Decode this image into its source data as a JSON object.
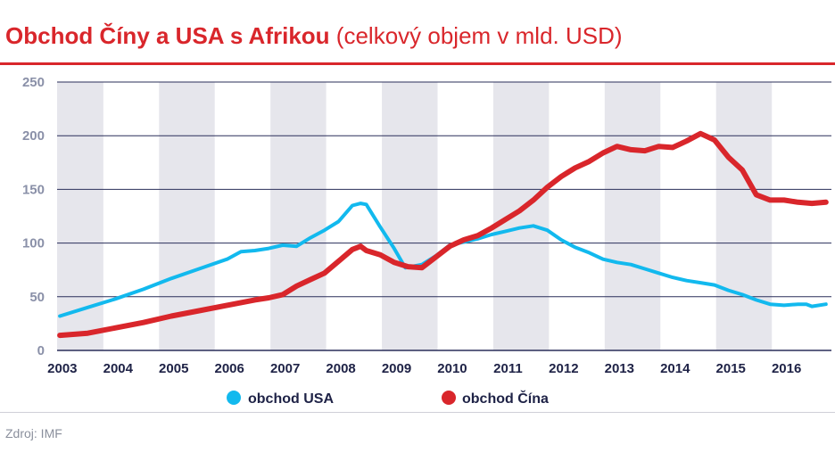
{
  "header": {
    "title_strong": "Obchod Číny a USA s Afrikou",
    "title_light": "(celkový objem v mld. USD)"
  },
  "footer": {
    "source": "Zdroj: IMF"
  },
  "colors": {
    "usa": "#12b9ee",
    "china": "#d9262b",
    "accent": "#d9262b",
    "band": "#e6e6ec",
    "grid": "#2a2f5a"
  },
  "chart_data": {
    "type": "line",
    "title": "Obchod Číny a USA s Afrikou (celkový objem v mld. USD)",
    "xlabel": "",
    "ylabel": "",
    "ylim": [
      0,
      250
    ],
    "xlim": [
      2003,
      2016.75
    ],
    "yticks": [
      0,
      50,
      100,
      150,
      200,
      250
    ],
    "xticks": [
      "2003",
      "2004",
      "2005",
      "2006",
      "2007",
      "2008",
      "2009",
      "2010",
      "2011",
      "2012",
      "2013",
      "2014",
      "2015",
      "2016"
    ],
    "grid": true,
    "legend": "bottom-center",
    "series": [
      {
        "name": "obchod USA",
        "color": "#12b9ee",
        "x": [
          2003.0,
          2003.5,
          2004.0,
          2004.5,
          2005.0,
          2005.5,
          2006.0,
          2006.25,
          2006.5,
          2006.75,
          2007.0,
          2007.25,
          2007.5,
          2007.75,
          2008.0,
          2008.25,
          2008.4,
          2008.5,
          2008.75,
          2009.0,
          2009.2,
          2009.5,
          2009.75,
          2010.0,
          2010.25,
          2010.5,
          2010.75,
          2011.0,
          2011.25,
          2011.5,
          2011.75,
          2012.0,
          2012.25,
          2012.5,
          2012.75,
          2013.0,
          2013.25,
          2013.5,
          2013.75,
          2014.0,
          2014.25,
          2014.5,
          2014.75,
          2015.0,
          2015.25,
          2015.5,
          2015.75,
          2016.0,
          2016.25,
          2016.4,
          2016.5,
          2016.75
        ],
        "y": [
          32,
          40,
          48,
          57,
          67,
          76,
          85,
          92,
          93,
          95,
          98,
          97,
          105,
          112,
          120,
          135,
          137,
          136,
          115,
          95,
          77,
          80,
          88,
          98,
          101,
          104,
          108,
          111,
          114,
          116,
          112,
          103,
          96,
          91,
          85,
          82,
          80,
          76,
          72,
          68,
          65,
          63,
          61,
          56,
          52,
          47,
          43,
          42,
          43,
          43,
          41,
          43
        ]
      },
      {
        "name": "obchod Čína",
        "color": "#d9262b",
        "x": [
          2003.0,
          2003.5,
          2004.0,
          2004.5,
          2005.0,
          2005.5,
          2006.0,
          2006.5,
          2006.75,
          2007.0,
          2007.25,
          2007.5,
          2007.75,
          2008.0,
          2008.25,
          2008.4,
          2008.5,
          2008.75,
          2009.0,
          2009.25,
          2009.5,
          2009.75,
          2010.0,
          2010.25,
          2010.5,
          2010.75,
          2011.0,
          2011.25,
          2011.5,
          2011.75,
          2012.0,
          2012.25,
          2012.5,
          2012.75,
          2013.0,
          2013.25,
          2013.5,
          2013.75,
          2014.0,
          2014.25,
          2014.5,
          2014.75,
          2015.0,
          2015.25,
          2015.5,
          2015.75,
          2016.0,
          2016.25,
          2016.5,
          2016.75
        ],
        "y": [
          14,
          16,
          21,
          26,
          32,
          37,
          42,
          47,
          49,
          52,
          60,
          66,
          72,
          83,
          94,
          97,
          93,
          89,
          82,
          78,
          77,
          87,
          97,
          103,
          107,
          114,
          122,
          130,
          140,
          152,
          162,
          170,
          176,
          184,
          190,
          187,
          186,
          190,
          189,
          195,
          202,
          196,
          180,
          168,
          145,
          140,
          140,
          138,
          137,
          138
        ]
      }
    ]
  }
}
